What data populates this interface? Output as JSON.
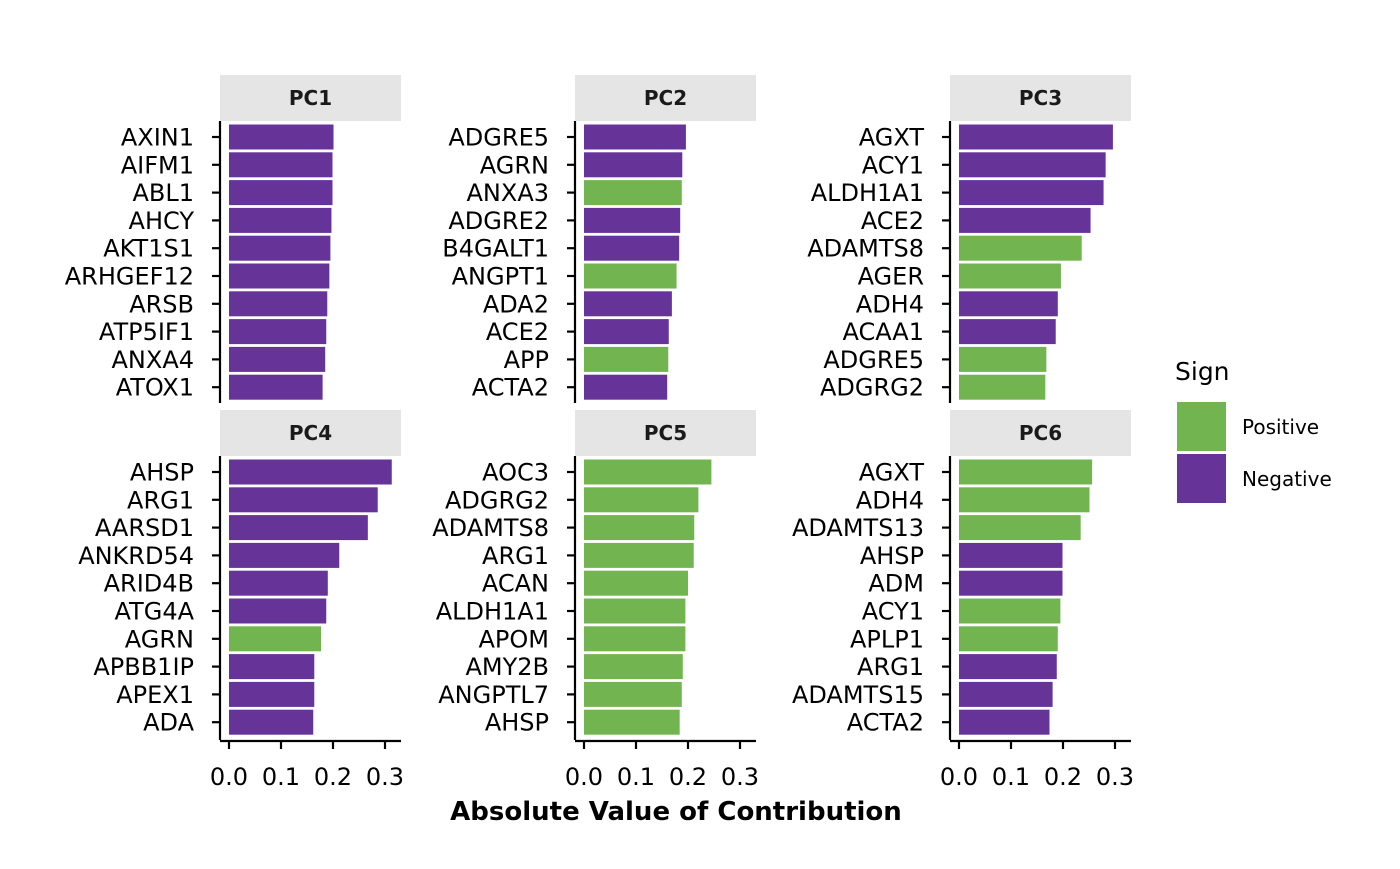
{
  "chart_data": {
    "type": "bar",
    "orientation": "horizontal",
    "facet_layout": "3 columns x 2 rows",
    "xlabel": "Absolute Value of Contribution",
    "xlim": [
      0,
      0.33
    ],
    "xticks": [
      0.0,
      0.1,
      0.2,
      0.3
    ],
    "xtick_labels": [
      "0.0",
      "0.1",
      "0.2",
      "0.3"
    ],
    "legend": {
      "title": "Sign",
      "position": "right",
      "items": [
        {
          "key": "positive",
          "label": "Positive",
          "color": "#72b550"
        },
        {
          "key": "negative",
          "label": "Negative",
          "color": "#663399"
        }
      ]
    },
    "panels": [
      {
        "strip": "PC1",
        "genes": [
          "AXIN1",
          "AIFM1",
          "ABL1",
          "AHCY",
          "AKT1S1",
          "ARHGEF12",
          "ARSB",
          "ATP5IF1",
          "ANXA4",
          "ATOX1"
        ],
        "values": [
          0.201,
          0.199,
          0.199,
          0.197,
          0.195,
          0.193,
          0.189,
          0.187,
          0.185,
          0.18
        ],
        "signs": [
          "negative",
          "negative",
          "negative",
          "negative",
          "negative",
          "negative",
          "negative",
          "negative",
          "negative",
          "negative"
        ]
      },
      {
        "strip": "PC2",
        "genes": [
          "ADGRE5",
          "AGRN",
          "ANXA3",
          "ADGRE2",
          "B4GALT1",
          "ANGPT1",
          "ADA2",
          "ACE2",
          "APP",
          "ACTA2"
        ],
        "values": [
          0.196,
          0.189,
          0.188,
          0.185,
          0.183,
          0.178,
          0.169,
          0.163,
          0.162,
          0.16
        ],
        "signs": [
          "negative",
          "negative",
          "positive",
          "negative",
          "negative",
          "positive",
          "negative",
          "negative",
          "positive",
          "negative"
        ]
      },
      {
        "strip": "PC3",
        "genes": [
          "AGXT",
          "ACY1",
          "ALDH1A1",
          "ACE2",
          "ADAMTS8",
          "AGER",
          "ADH4",
          "ACAA1",
          "ADGRE5",
          "ADGRG2"
        ],
        "values": [
          0.296,
          0.282,
          0.278,
          0.253,
          0.236,
          0.196,
          0.19,
          0.186,
          0.168,
          0.166
        ],
        "signs": [
          "negative",
          "negative",
          "negative",
          "negative",
          "positive",
          "positive",
          "negative",
          "negative",
          "positive",
          "positive"
        ]
      },
      {
        "strip": "PC4",
        "genes": [
          "AHSP",
          "ARG1",
          "AARSD1",
          "ANKRD54",
          "ARID4B",
          "ATG4A",
          "AGRN",
          "APBB1IP",
          "APEX1",
          "ADA"
        ],
        "values": [
          0.313,
          0.286,
          0.267,
          0.212,
          0.19,
          0.187,
          0.177,
          0.164,
          0.164,
          0.162
        ],
        "signs": [
          "negative",
          "negative",
          "negative",
          "negative",
          "negative",
          "negative",
          "positive",
          "negative",
          "negative",
          "negative"
        ]
      },
      {
        "strip": "PC5",
        "genes": [
          "AOC3",
          "ADGRG2",
          "ADAMTS8",
          "ARG1",
          "ACAN",
          "ALDH1A1",
          "APOM",
          "AMY2B",
          "ANGPTL7",
          "AHSP"
        ],
        "values": [
          0.245,
          0.22,
          0.212,
          0.211,
          0.2,
          0.195,
          0.195,
          0.19,
          0.188,
          0.184
        ],
        "signs": [
          "positive",
          "positive",
          "positive",
          "positive",
          "positive",
          "positive",
          "positive",
          "positive",
          "positive",
          "positive"
        ]
      },
      {
        "strip": "PC6",
        "genes": [
          "AGXT",
          "ADH4",
          "ADAMTS13",
          "AHSP",
          "ADM",
          "ACY1",
          "APLP1",
          "ARG1",
          "ADAMTS15",
          "ACTA2"
        ],
        "values": [
          0.256,
          0.251,
          0.234,
          0.199,
          0.199,
          0.195,
          0.19,
          0.188,
          0.18,
          0.174
        ],
        "signs": [
          "positive",
          "positive",
          "positive",
          "negative",
          "negative",
          "positive",
          "positive",
          "negative",
          "negative",
          "negative"
        ]
      }
    ]
  }
}
